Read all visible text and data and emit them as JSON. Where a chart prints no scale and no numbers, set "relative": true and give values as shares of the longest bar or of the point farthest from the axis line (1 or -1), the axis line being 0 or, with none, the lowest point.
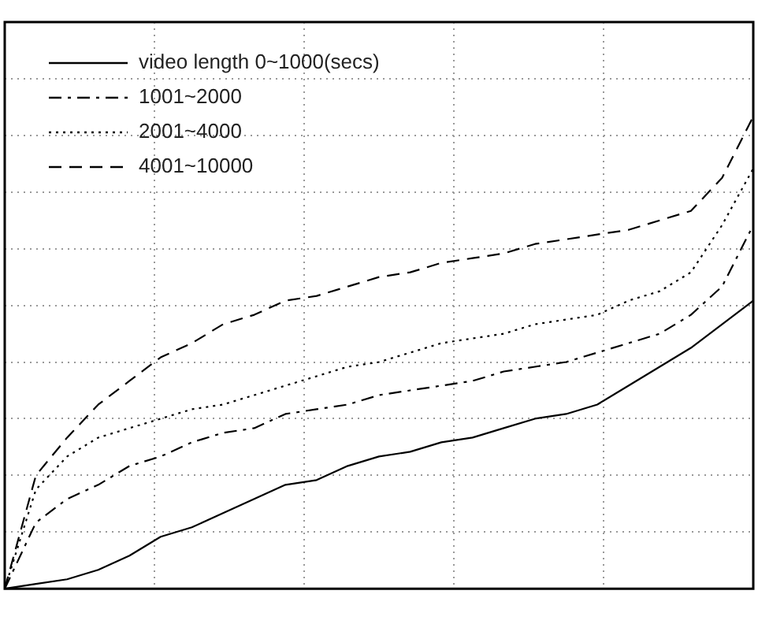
{
  "chart_data": {
    "type": "line",
    "relative": true,
    "grid": true,
    "legend": "top left",
    "marker": "none",
    "categories": [
      null,
      null,
      null,
      null,
      null,
      null,
      null,
      null,
      null,
      null,
      null,
      null,
      null,
      null,
      null,
      null,
      null,
      null,
      null,
      null,
      null,
      null,
      null,
      null,
      null
    ],
    "series": [
      {
        "name": "video length 0~1000(secs)",
        "color": "#000000",
        "line_style": "solid",
        "values": [
          0,
          0.01,
          0.02,
          0.04,
          0.07,
          0.11,
          0.13,
          0.16,
          0.19,
          0.22,
          0.23,
          0.26,
          0.28,
          0.29,
          0.31,
          0.32,
          0.34,
          0.36,
          0.37,
          0.39,
          0.43,
          0.47,
          0.51,
          0.56,
          0.61
        ]
      },
      {
        "name": "1001~2000",
        "color": "#000000",
        "line_style": "dashdot",
        "values": [
          0,
          0.14,
          0.19,
          0.22,
          0.26,
          0.28,
          0.31,
          0.33,
          0.34,
          0.37,
          0.38,
          0.39,
          0.41,
          0.42,
          0.43,
          0.44,
          0.46,
          0.47,
          0.48,
          0.5,
          0.52,
          0.54,
          0.58,
          0.64,
          0.77
        ]
      },
      {
        "name": "2001~4000",
        "color": "#000000",
        "line_style": "dotted",
        "values": [
          0,
          0.21,
          0.28,
          0.32,
          0.34,
          0.36,
          0.38,
          0.39,
          0.41,
          0.43,
          0.45,
          0.47,
          0.48,
          0.5,
          0.52,
          0.53,
          0.54,
          0.56,
          0.57,
          0.58,
          0.61,
          0.63,
          0.67,
          0.77,
          0.89
        ]
      },
      {
        "name": "4001~10000",
        "color": "#000000",
        "line_style": "dashed",
        "values": [
          0,
          0.24,
          0.32,
          0.39,
          0.44,
          0.49,
          0.52,
          0.56,
          0.58,
          0.61,
          0.62,
          0.64,
          0.66,
          0.67,
          0.69,
          0.7,
          0.71,
          0.73,
          0.74,
          0.75,
          0.76,
          0.78,
          0.8,
          0.87,
          1
        ]
      }
    ]
  }
}
